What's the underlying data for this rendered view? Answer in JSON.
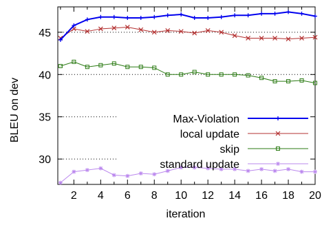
{
  "chart_data": {
    "type": "line",
    "title": "",
    "xlabel": "iteration",
    "ylabel": "BLEU on dev",
    "xlim": [
      0.8,
      20
    ],
    "ylim": [
      27,
      48
    ],
    "x_ticks": [
      2,
      4,
      6,
      8,
      10,
      12,
      14,
      16,
      18,
      20
    ],
    "y_ticks": [
      30,
      35,
      40,
      45
    ],
    "grid": "horizontal dotted",
    "legend_position": "lower-right",
    "x": [
      1,
      2,
      3,
      4,
      5,
      6,
      7,
      8,
      9,
      10,
      11,
      12,
      13,
      14,
      15,
      16,
      17,
      18,
      19,
      20
    ],
    "series": [
      {
        "name": "Max-Violation",
        "color": "#0000ee",
        "marker": "plus",
        "width": 2,
        "values": [
          44.1,
          45.8,
          46.5,
          46.8,
          46.8,
          46.7,
          46.7,
          46.8,
          47.0,
          47.1,
          46.7,
          46.7,
          46.8,
          47.0,
          47.0,
          47.2,
          47.2,
          47.4,
          47.2,
          46.9
        ]
      },
      {
        "name": "local update",
        "color": "#b33030",
        "marker": "x",
        "width": 1,
        "values": [
          44.3,
          45.4,
          45.1,
          45.4,
          45.5,
          45.6,
          45.3,
          45.0,
          45.2,
          45.1,
          44.9,
          45.2,
          45.0,
          44.6,
          44.3,
          44.3,
          44.3,
          44.2,
          44.3,
          44.4
        ]
      },
      {
        "name": "skip",
        "color": "#2a7a12",
        "marker": "square",
        "width": 1,
        "values": [
          41.0,
          41.5,
          40.9,
          41.1,
          41.3,
          40.9,
          40.9,
          40.8,
          40.0,
          40.0,
          40.3,
          40.0,
          40.0,
          40.0,
          39.9,
          39.6,
          39.2,
          39.2,
          39.3,
          39.0
        ]
      },
      {
        "name": "standard update",
        "color": "#bb88ee",
        "marker": "star",
        "width": 1,
        "values": [
          27.2,
          28.5,
          28.7,
          28.9,
          28.1,
          28.0,
          28.3,
          28.2,
          28.6,
          29.0,
          29.0,
          28.9,
          28.8,
          28.8,
          28.6,
          28.8,
          28.6,
          28.8,
          28.5,
          28.5
        ]
      }
    ]
  }
}
